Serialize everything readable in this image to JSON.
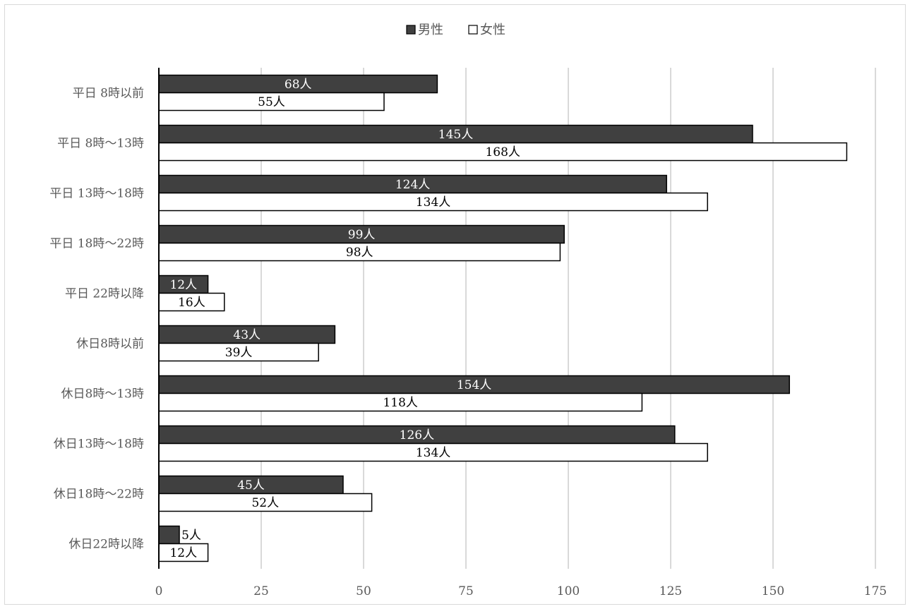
{
  "chart_data": {
    "type": "bar",
    "orientation": "horizontal",
    "categories": [
      "平日 8時以前",
      "平日 8時〜13時",
      "平日 13時〜18時",
      "平日 18時〜22時",
      "平日 22時以降",
      "休日8時以前",
      "休日8時〜13時",
      "休日13時〜18時",
      "休日18時〜22時",
      "休日22時以降"
    ],
    "series": [
      {
        "name": "男性",
        "color": "#404040",
        "label_color": "#ffffff",
        "values": [
          68,
          145,
          124,
          99,
          12,
          43,
          154,
          126,
          45,
          5
        ],
        "labels": [
          "68人",
          "145人",
          "124人",
          "99人",
          "12人",
          "43人",
          "154人",
          "126人",
          "45人",
          "5人"
        ]
      },
      {
        "name": "女性",
        "color": "#ffffff",
        "label_color": "#000000",
        "values": [
          55,
          168,
          134,
          98,
          16,
          39,
          118,
          134,
          52,
          12
        ],
        "labels": [
          "55人",
          "168人",
          "134人",
          "98人",
          "16人",
          "39人",
          "118人",
          "134人",
          "52人",
          "12人"
        ]
      }
    ],
    "xlim": [
      0,
      175
    ],
    "xticks": [
      0,
      25,
      50,
      75,
      100,
      125,
      150,
      175
    ],
    "grid": true,
    "legend_position": "top"
  }
}
